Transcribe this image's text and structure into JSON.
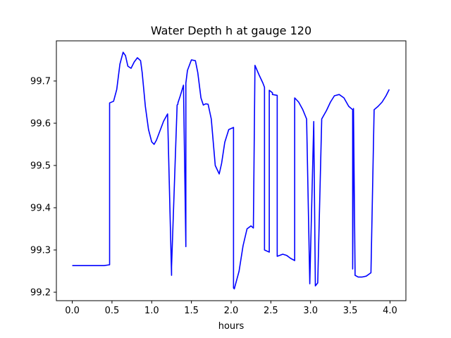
{
  "chart_data": {
    "type": "line",
    "title": "Water Depth h at gauge 120",
    "xlabel": "hours",
    "ylabel": "",
    "xlim": [
      -0.2,
      4.2
    ],
    "ylim": [
      99.18,
      99.795
    ],
    "xticks": [
      0.0,
      0.5,
      1.0,
      1.5,
      2.0,
      2.5,
      3.0,
      3.5,
      4.0
    ],
    "xtick_labels": [
      "0.0",
      "0.5",
      "1.0",
      "1.5",
      "2.0",
      "2.5",
      "3.0",
      "3.5",
      "4.0"
    ],
    "yticks": [
      99.2,
      99.3,
      99.4,
      99.5,
      99.6,
      99.7
    ],
    "ytick_labels": [
      "99.2",
      "99.3",
      "99.4",
      "99.5",
      "99.6",
      "99.7"
    ],
    "grid": false,
    "series": [
      {
        "color": "#0000ff",
        "x": [
          0.0,
          0.2,
          0.4,
          0.47,
          0.47,
          0.52,
          0.56,
          0.6,
          0.64,
          0.67,
          0.7,
          0.74,
          0.78,
          0.82,
          0.86,
          0.88,
          0.92,
          0.96,
          1.0,
          1.03,
          1.06,
          1.1,
          1.15,
          1.2,
          1.25,
          1.25,
          1.32,
          1.33,
          1.33,
          1.36,
          1.4,
          1.43,
          1.43,
          1.43,
          1.45,
          1.5,
          1.55,
          1.58,
          1.62,
          1.65,
          1.68,
          1.71,
          1.75,
          1.8,
          1.85,
          1.88,
          1.92,
          1.97,
          2.03,
          2.03,
          2.04,
          2.1,
          2.15,
          2.2,
          2.25,
          2.28,
          2.3,
          2.3,
          2.35,
          2.4,
          2.42,
          2.42,
          2.48,
          2.48,
          2.52,
          2.52,
          2.58,
          2.58,
          2.65,
          2.7,
          2.75,
          2.8,
          2.8,
          2.85,
          2.9,
          2.95,
          2.99,
          2.99,
          3.04,
          3.04,
          3.06,
          3.06,
          3.09,
          3.14,
          3.14,
          3.2,
          3.25,
          3.3,
          3.36,
          3.42,
          3.48,
          3.53,
          3.53,
          3.54,
          3.56,
          3.56,
          3.6,
          3.65,
          3.7,
          3.76,
          3.8,
          3.8,
          3.85,
          3.9,
          3.95,
          3.99
        ],
        "y": [
          99.263,
          99.263,
          99.263,
          99.265,
          99.648,
          99.652,
          99.68,
          99.74,
          99.768,
          99.76,
          99.735,
          99.73,
          99.745,
          99.755,
          99.748,
          99.72,
          99.64,
          99.585,
          99.556,
          99.55,
          99.56,
          99.58,
          99.605,
          99.622,
          99.24,
          99.26,
          99.643,
          99.645,
          99.648,
          99.665,
          99.69,
          99.308,
          99.69,
          99.695,
          99.725,
          99.75,
          99.748,
          99.72,
          99.66,
          99.643,
          99.646,
          99.645,
          99.61,
          99.5,
          99.48,
          99.505,
          99.555,
          99.585,
          99.59,
          99.21,
          99.208,
          99.25,
          99.31,
          99.35,
          99.357,
          99.352,
          99.737,
          99.737,
          99.715,
          99.695,
          99.685,
          99.3,
          99.295,
          99.678,
          99.672,
          99.668,
          99.666,
          99.285,
          99.29,
          99.287,
          99.28,
          99.275,
          99.66,
          99.65,
          99.633,
          99.61,
          99.222,
          99.22,
          99.604,
          99.6,
          99.218,
          99.215,
          99.222,
          99.608,
          99.61,
          99.63,
          99.65,
          99.665,
          99.668,
          99.66,
          99.64,
          99.632,
          99.255,
          99.635,
          99.25,
          99.24,
          99.236,
          99.236,
          99.238,
          99.246,
          99.632,
          99.632,
          99.64,
          99.65,
          99.665,
          99.68
        ]
      }
    ]
  }
}
